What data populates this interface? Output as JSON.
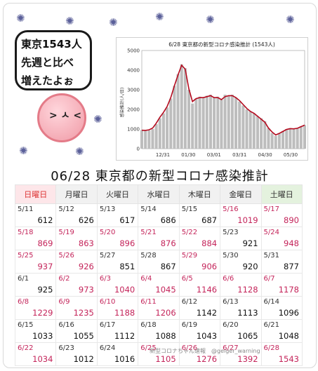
{
  "speech": {
    "line1": "東京1543人",
    "line2": "先週と比べ",
    "line3": "増えたよぉ"
  },
  "chart_data": {
    "type": "bar",
    "title": "6/28 東京都の新型コロナ感染推計 (1543人)",
    "ylabel": "感染推計(人/日)",
    "ylim": [
      0,
      5000
    ],
    "yticks": [
      "0",
      "1000",
      "2000",
      "3000",
      "4000",
      "5000"
    ],
    "xticks": [
      "12/31",
      "01/30",
      "03/01",
      "03/31",
      "04/30",
      "05/30"
    ],
    "series_color": "#b40a1e",
    "bar_color": "#bdbdbd",
    "x": [
      0,
      10,
      20,
      30,
      40,
      50,
      60,
      70,
      80,
      90,
      100,
      110,
      120,
      130,
      140,
      150,
      160,
      170,
      180,
      190,
      200,
      210,
      220,
      230,
      240,
      250,
      260,
      270,
      280,
      290,
      300,
      310,
      320,
      330,
      340,
      350,
      360,
      370,
      380,
      390,
      400,
      410,
      420,
      430,
      440,
      450
    ],
    "values": [
      950,
      920,
      930,
      1000,
      1250,
      1550,
      1800,
      2100,
      2550,
      3200,
      3800,
      4300,
      4100,
      3000,
      2300,
      2550,
      2650,
      2600,
      2700,
      2750,
      2600,
      2650,
      2500,
      2750,
      2700,
      2750,
      2600,
      2400,
      2200,
      2000,
      1900,
      1800,
      1650,
      1550,
      1400,
      1050,
      800,
      650,
      780,
      900,
      1000,
      1050,
      1000,
      1050,
      1150,
      1200
    ],
    "line": [
      940,
      930,
      960,
      1050,
      1300,
      1600,
      1850,
      2150,
      2600,
      3200,
      3750,
      4250,
      4050,
      3050,
      2400,
      2550,
      2600,
      2600,
      2650,
      2700,
      2600,
      2600,
      2500,
      2650,
      2700,
      2700,
      2600,
      2450,
      2250,
      2050,
      1900,
      1800,
      1650,
      1500,
      1350,
      1050,
      850,
      700,
      780,
      880,
      980,
      1020,
      1010,
      1040,
      1120,
      1200
    ]
  },
  "calendar": {
    "title": "06/28 東京都の新型コロナ感染推計",
    "headers": [
      "日曜日",
      "月曜日",
      "火曜日",
      "水曜日",
      "木曜日",
      "金曜日",
      "土曜日"
    ],
    "rows": [
      [
        [
          "5/11",
          "612",
          0
        ],
        [
          "5/12",
          "626",
          0
        ],
        [
          "5/13",
          "617",
          0
        ],
        [
          "5/14",
          "686",
          0
        ],
        [
          "5/15",
          "687",
          0
        ],
        [
          "5/16",
          "1019",
          1
        ],
        [
          "5/17",
          "890",
          1
        ]
      ],
      [
        [
          "5/18",
          "869",
          1
        ],
        [
          "5/19",
          "863",
          1
        ],
        [
          "5/20",
          "896",
          1
        ],
        [
          "5/21",
          "876",
          1
        ],
        [
          "5/22",
          "884",
          1
        ],
        [
          "5/23",
          "921",
          0
        ],
        [
          "5/24",
          "948",
          1
        ]
      ],
      [
        [
          "5/25",
          "937",
          1
        ],
        [
          "5/26",
          "926",
          1
        ],
        [
          "5/27",
          "851",
          0
        ],
        [
          "5/28",
          "867",
          0
        ],
        [
          "5/29",
          "906",
          1
        ],
        [
          "5/30",
          "920",
          0
        ],
        [
          "5/31",
          "877",
          0
        ]
      ],
      [
        [
          "6/1",
          "925",
          0
        ],
        [
          "6/2",
          "973",
          1
        ],
        [
          "6/3",
          "1040",
          1
        ],
        [
          "6/4",
          "1045",
          1
        ],
        [
          "6/5",
          "1146",
          1
        ],
        [
          "6/6",
          "1128",
          1
        ],
        [
          "6/7",
          "1178",
          1
        ]
      ],
      [
        [
          "6/8",
          "1229",
          1
        ],
        [
          "6/9",
          "1235",
          1
        ],
        [
          "6/10",
          "1188",
          1
        ],
        [
          "6/11",
          "1206",
          1
        ],
        [
          "6/12",
          "1142",
          0
        ],
        [
          "6/13",
          "1113",
          0
        ],
        [
          "6/14",
          "1096",
          0
        ]
      ],
      [
        [
          "6/15",
          "1033",
          0
        ],
        [
          "6/16",
          "1055",
          0
        ],
        [
          "6/17",
          "1112",
          0
        ],
        [
          "6/18",
          "1088",
          0
        ],
        [
          "6/19",
          "1043",
          0
        ],
        [
          "6/20",
          "1065",
          0
        ],
        [
          "6/21",
          "1048",
          0
        ]
      ],
      [
        [
          "6/22",
          "1034",
          1
        ],
        [
          "6/23",
          "1012",
          0
        ],
        [
          "6/24",
          "1016",
          0
        ],
        [
          "6/25",
          "1105",
          1
        ],
        [
          "6/26",
          "1276",
          1
        ],
        [
          "6/27",
          "1392",
          1
        ],
        [
          "6/28",
          "1543",
          1
        ]
      ]
    ]
  },
  "footer": "新型コロナちゃん速報　@geiger_warning",
  "colors": {
    "up": "#c4245a",
    "sunday_header": "#fde6e9",
    "saturday_header": "#e4f2de"
  }
}
